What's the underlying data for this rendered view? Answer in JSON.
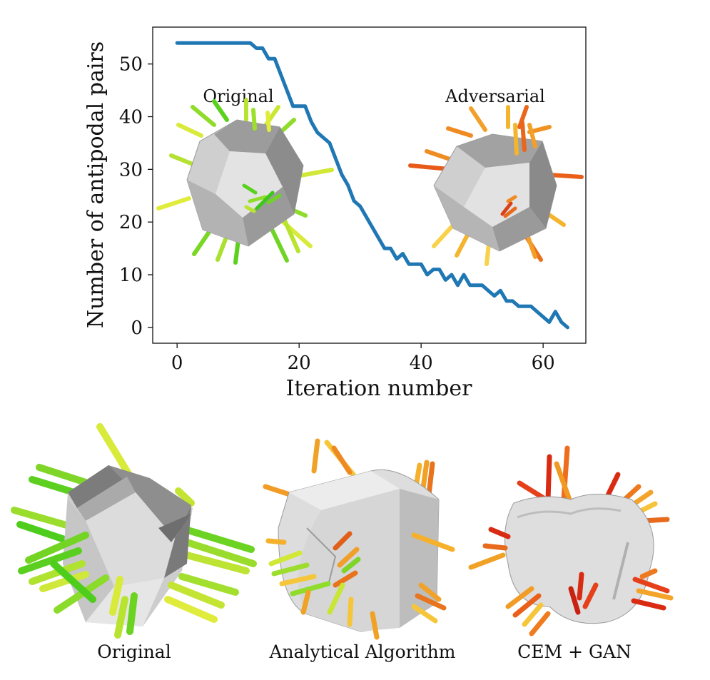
{
  "chart_data": {
    "type": "line",
    "xlabel": "Iteration number",
    "ylabel": "Number of antipodal pairs",
    "xlim": [
      -4,
      67
    ],
    "ylim": [
      -3,
      57
    ],
    "xticks": [
      0,
      20,
      40,
      60
    ],
    "yticks": [
      0,
      10,
      20,
      30,
      40,
      50
    ],
    "grid": false,
    "series": [
      {
        "color": "#1f77b4",
        "x": [
          0,
          1,
          2,
          3,
          4,
          5,
          6,
          7,
          8,
          9,
          10,
          11,
          12,
          13,
          14,
          15,
          16,
          17,
          18,
          19,
          20,
          21,
          22,
          23,
          24,
          25,
          26,
          27,
          28,
          29,
          30,
          31,
          32,
          33,
          34,
          35,
          36,
          37,
          38,
          39,
          40,
          41,
          42,
          43,
          44,
          45,
          46,
          47,
          48,
          49,
          50,
          51,
          52,
          53,
          54,
          55,
          56,
          57,
          58,
          59,
          60,
          61,
          62,
          63,
          64
        ],
        "y": [
          54,
          54,
          54,
          54,
          54,
          54,
          54,
          54,
          54,
          54,
          54,
          54,
          54,
          53,
          53,
          51,
          51,
          48,
          45,
          42,
          42,
          42,
          39,
          37,
          36,
          35,
          32,
          29,
          27,
          24,
          23,
          21,
          19,
          17,
          15,
          15,
          13,
          14,
          12,
          12,
          12,
          10,
          11,
          11,
          9,
          10,
          8,
          10,
          8,
          8,
          8,
          7,
          6,
          7,
          5,
          5,
          4,
          4,
          4,
          3,
          2,
          1,
          3,
          1,
          0
        ]
      }
    ],
    "insets": [
      {
        "label": "Original"
      },
      {
        "label": "Adversarial"
      }
    ]
  },
  "panels": {
    "labels": [
      "Original",
      "Analytical Algorithm",
      "CEM + GAN"
    ]
  }
}
